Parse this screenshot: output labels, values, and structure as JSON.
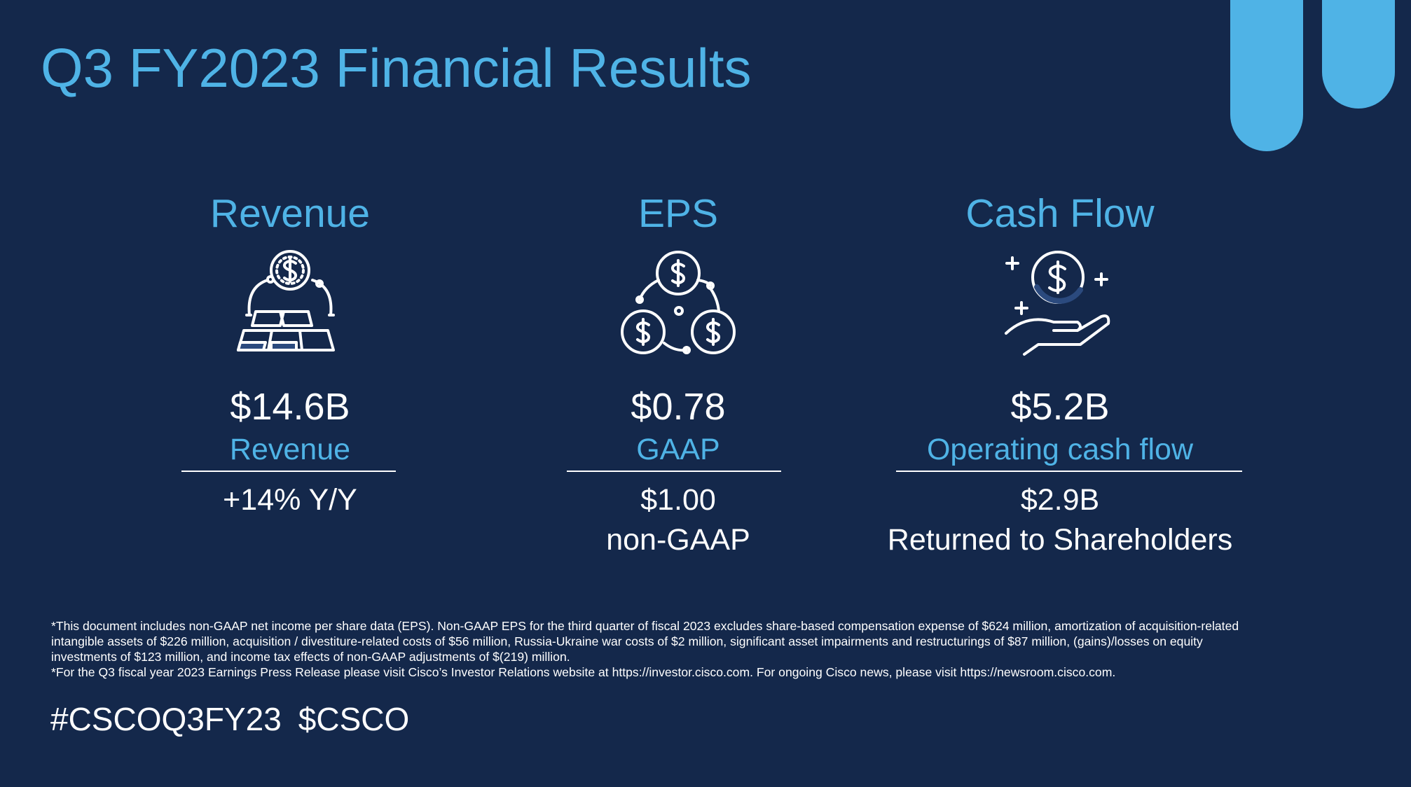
{
  "header": {
    "title": "Q3 FY2023 Financial Results"
  },
  "metrics": [
    {
      "heading": "Revenue",
      "value": "$14.6B",
      "label": "Revenue",
      "secondary": [
        "+14% Y/Y"
      ]
    },
    {
      "heading": "EPS",
      "value": "$0.78",
      "label": "GAAP",
      "secondary": [
        "$1.00",
        "non-GAAP"
      ]
    },
    {
      "heading": "Cash Flow",
      "value": "$5.2B",
      "label": "Operating cash flow",
      "secondary": [
        "$2.9B",
        "Returned to Shareholders"
      ]
    }
  ],
  "footnotes": [
    "*This document includes non-GAAP net income per share data (EPS). Non-GAAP EPS for the third quarter of fiscal 2023 excludes share-based compensation expense of $624 million, amortization of acquisition-related",
    "intangible assets of $226 million, acquisition / divestiture-related costs of $56 million, Russia-Ukraine war costs of $2 million, significant asset impairments and restructurings of $87 million, (gains)/losses on equity",
    "investments of $123 million, and income tax effects of non-GAAP adjustments of $(219) million.",
    "*For the Q3 fiscal year 2023 Earnings Press Release please visit Cisco’s Investor Relations website at https://investor.cisco.com. For ongoing Cisco news, please visit https://newsroom.cisco.com."
  ],
  "hashtags": [
    "#CSCOQ3FY23",
    "$CSCO"
  ]
}
